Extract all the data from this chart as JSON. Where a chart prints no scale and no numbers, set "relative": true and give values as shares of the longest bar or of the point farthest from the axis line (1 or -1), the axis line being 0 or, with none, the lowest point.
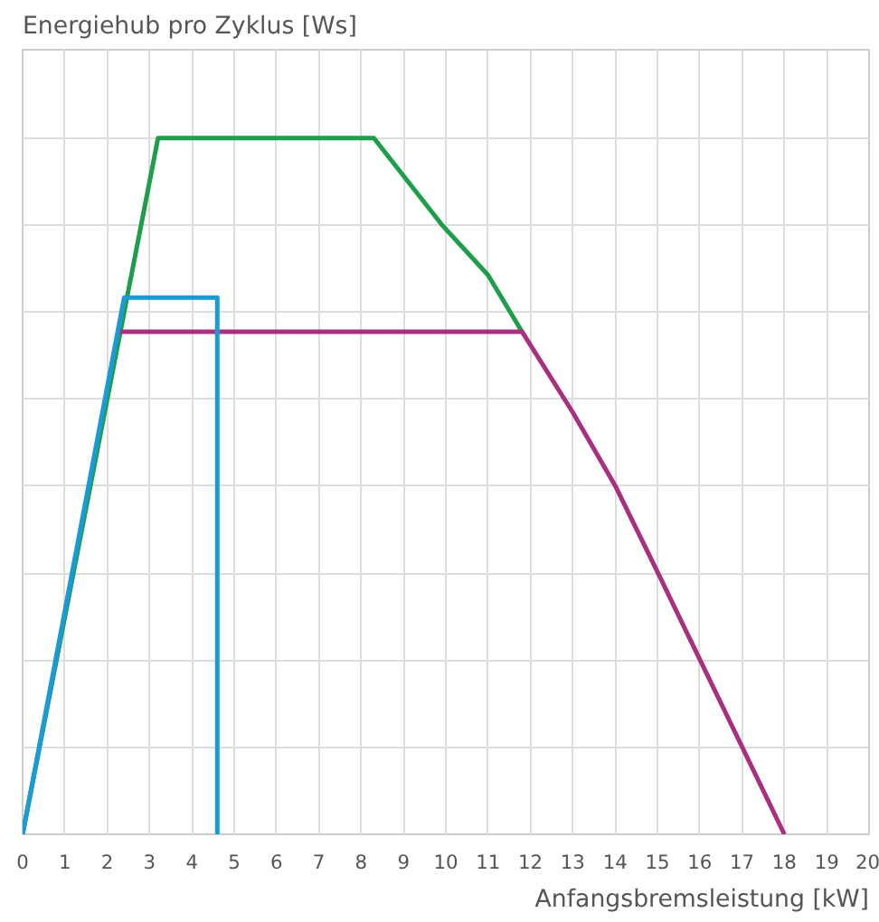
{
  "chart_data": {
    "type": "line",
    "relative": true,
    "xlabel": "Anfangsbremsleistung [kW]",
    "ylabel": "Energiehub pro Zyklus [Ws]",
    "xlim": [
      0,
      20
    ],
    "xticks": [
      0,
      1,
      2,
      3,
      4,
      5,
      6,
      7,
      8,
      9,
      10,
      11,
      12,
      13,
      14,
      15,
      16,
      17,
      18,
      19,
      20
    ],
    "grid": true,
    "marker": "none",
    "line_style": "solid",
    "series": [
      {
        "color": "#1e9e4a",
        "x": [
          0,
          3.2,
          8.3,
          9.9,
          11,
          11.8
        ],
        "values": [
          0,
          1,
          1,
          0.876,
          0.803,
          0.722
        ]
      },
      {
        "color": "#a8307f",
        "x": [
          2.3,
          11.8,
          13,
          14,
          15,
          18
        ],
        "values": [
          0.722,
          0.722,
          0.606,
          0.501,
          0.377,
          0
        ]
      },
      {
        "color": "#1a9bd7",
        "x": [
          0,
          2.4,
          4.6,
          4.6
        ],
        "values": [
          0,
          0.771,
          0.771,
          0
        ]
      }
    ]
  }
}
